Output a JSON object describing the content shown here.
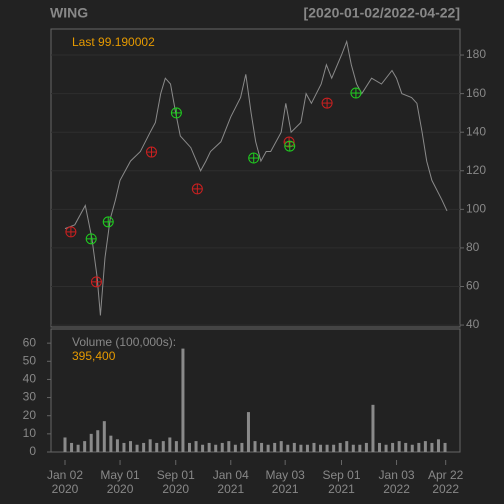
{
  "chart_data": [
    {
      "type": "line",
      "title": "WING",
      "subtitle": "[2020-01-02/2022-04-22]",
      "annotation": "Last 99.190002",
      "color": "#8a8a8a",
      "x": [
        0,
        15,
        31,
        41,
        49,
        54,
        61,
        69,
        77,
        84,
        100,
        115,
        130,
        138,
        146,
        153,
        161,
        169,
        176,
        192,
        207,
        215,
        222,
        238,
        253,
        268,
        276,
        284,
        291,
        299,
        307,
        314,
        330,
        337,
        345,
        360,
        368,
        376,
        391,
        399,
        407,
        422,
        430,
        437,
        445,
        453,
        468,
        483,
        499,
        506,
        514,
        529,
        537,
        545,
        552,
        560,
        575,
        583
      ],
      "values": [
        90,
        92,
        102,
        85,
        65,
        45,
        75,
        95,
        105,
        115,
        125,
        130,
        140,
        145,
        160,
        168,
        165,
        150,
        138,
        132,
        120,
        125,
        130,
        135,
        148,
        158,
        170,
        150,
        135,
        125,
        130,
        130,
        140,
        155,
        140,
        145,
        160,
        155,
        165,
        175,
        168,
        180,
        187,
        175,
        165,
        160,
        168,
        165,
        172,
        168,
        160,
        158,
        155,
        140,
        125,
        115,
        105,
        99.19
      ],
      "markers": [
        {
          "color": "#cc2020",
          "x": [
            9,
            48,
            132,
            202,
            342,
            400
          ],
          "values": [
            88.3,
            62.4,
            129.7,
            110.6,
            134.9,
            155.1
          ]
        },
        {
          "color": "#20cc20",
          "x": [
            40,
            66,
            170,
            288,
            343,
            444
          ],
          "values": [
            84.7,
            93.5,
            150,
            126.6,
            132.8,
            160.3
          ]
        }
      ],
      "xlim": [
        0,
        583
      ],
      "ylim": [
        39,
        193.5
      ],
      "yticks": [
        40,
        60,
        80,
        100,
        120,
        140,
        160,
        180
      ],
      "grid": true
    },
    {
      "type": "bar",
      "title": "Volume (100,000s):",
      "annotation": "395,400",
      "color": "#8a8a8a",
      "x": [
        0,
        10,
        20,
        30,
        40,
        50,
        60,
        70,
        80,
        90,
        100,
        110,
        120,
        130,
        140,
        150,
        160,
        170,
        180,
        190,
        200,
        210,
        220,
        230,
        240,
        250,
        260,
        270,
        280,
        290,
        300,
        310,
        320,
        330,
        340,
        350,
        360,
        370,
        380,
        390,
        400,
        410,
        420,
        430,
        440,
        450,
        460,
        470,
        480,
        490,
        500,
        510,
        520,
        530,
        540,
        550,
        560,
        570,
        580
      ],
      "values": [
        8,
        5,
        4,
        6,
        10,
        12,
        17,
        9,
        7,
        5,
        6,
        4,
        5,
        7,
        5,
        6,
        8,
        6,
        57,
        5,
        6,
        4,
        5,
        4,
        5,
        6,
        4,
        5,
        22,
        6,
        5,
        4,
        5,
        6,
        4,
        5,
        4,
        4,
        5,
        4,
        4,
        4,
        5,
        6,
        4,
        4,
        5,
        26,
        5,
        4,
        5,
        6,
        5,
        4,
        5,
        6,
        5,
        7,
        5
      ],
      "xlim": [
        0,
        583
      ],
      "ylim": [
        0,
        67.8
      ],
      "yticks": [
        0,
        10,
        20,
        30,
        40,
        50,
        60
      ],
      "xticks": [
        {
          "value": 0,
          "label": "Jan 02",
          "sublabel": "2020"
        },
        {
          "value": 84,
          "label": "May 01",
          "sublabel": "2020"
        },
        {
          "value": 169,
          "label": "Sep 01",
          "sublabel": "2020"
        },
        {
          "value": 253,
          "label": "Jan 04",
          "sublabel": "2021"
        },
        {
          "value": 336,
          "label": "May 03",
          "sublabel": "2021"
        },
        {
          "value": 422,
          "label": "Sep 01",
          "sublabel": "2021"
        },
        {
          "value": 506,
          "label": "Jan 03",
          "sublabel": "2022"
        },
        {
          "value": 581,
          "label": "Apr 22",
          "sublabel": "2022"
        }
      ]
    }
  ]
}
